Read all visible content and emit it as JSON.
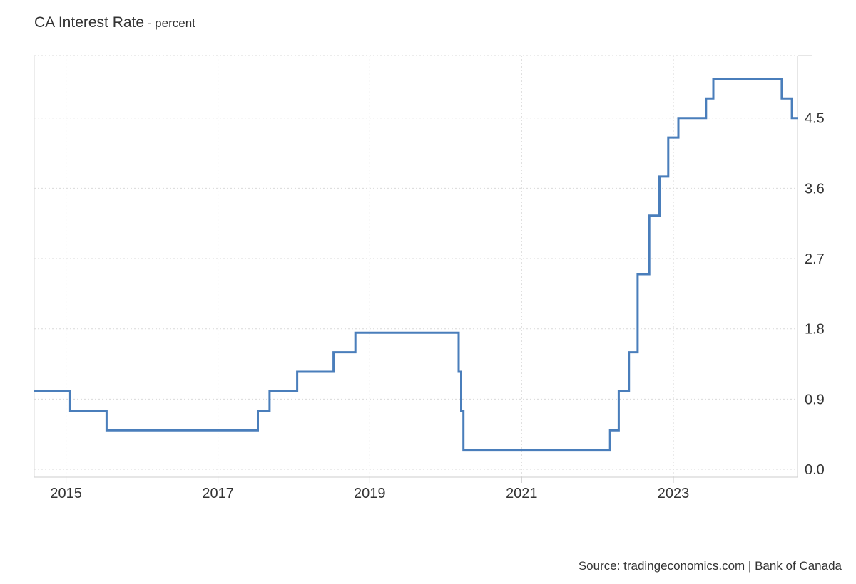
{
  "header": {
    "title": "CA Interest Rate",
    "unit": " - percent"
  },
  "footer": {
    "source": "Source: tradingeconomics.com | Bank of Canada"
  },
  "colors": {
    "line": "#4a7ebb",
    "grid": "#d9d9d9",
    "axis": "#cccccc",
    "text": "#333333"
  },
  "chart_data": {
    "type": "line",
    "step": true,
    "title": "CA Interest Rate",
    "subtitle": "percent",
    "xlabel": "",
    "ylabel": "",
    "xlim": [
      "2014-08-01",
      "2024-08-20"
    ],
    "ylim": [
      -0.1,
      5.3
    ],
    "y_ticks": [
      0.0,
      0.9,
      1.8,
      2.7,
      3.6,
      4.5
    ],
    "y_tick_labels": [
      "0.0",
      "0.9",
      "1.8",
      "2.7",
      "3.6",
      "4.5"
    ],
    "x_ticks": [
      "2015-01-01",
      "2017-01-01",
      "2019-01-01",
      "2021-01-01",
      "2023-01-01"
    ],
    "x_tick_labels": [
      "2015",
      "2017",
      "2019",
      "2021",
      "2023"
    ],
    "grid": true,
    "y_axis_position": "right",
    "series": [
      {
        "points": [
          {
            "x": "2014-08-01",
            "y": 1.0
          },
          {
            "x": "2015-01-21",
            "y": 0.75
          },
          {
            "x": "2015-07-15",
            "y": 0.5
          },
          {
            "x": "2017-07-12",
            "y": 0.75
          },
          {
            "x": "2017-09-06",
            "y": 1.0
          },
          {
            "x": "2018-01-17",
            "y": 1.25
          },
          {
            "x": "2018-07-11",
            "y": 1.5
          },
          {
            "x": "2018-10-24",
            "y": 1.75
          },
          {
            "x": "2020-03-04",
            "y": 1.25
          },
          {
            "x": "2020-03-16",
            "y": 0.75
          },
          {
            "x": "2020-03-27",
            "y": 0.25
          },
          {
            "x": "2022-03-02",
            "y": 0.5
          },
          {
            "x": "2022-04-13",
            "y": 1.0
          },
          {
            "x": "2022-06-01",
            "y": 1.5
          },
          {
            "x": "2022-07-13",
            "y": 2.5
          },
          {
            "x": "2022-09-07",
            "y": 3.25
          },
          {
            "x": "2022-10-26",
            "y": 3.75
          },
          {
            "x": "2022-12-07",
            "y": 4.25
          },
          {
            "x": "2023-01-25",
            "y": 4.5
          },
          {
            "x": "2023-06-07",
            "y": 4.75
          },
          {
            "x": "2023-07-12",
            "y": 5.0
          },
          {
            "x": "2024-06-05",
            "y": 4.75
          },
          {
            "x": "2024-07-24",
            "y": 4.5
          },
          {
            "x": "2024-08-20",
            "y": 4.5
          }
        ]
      }
    ]
  }
}
